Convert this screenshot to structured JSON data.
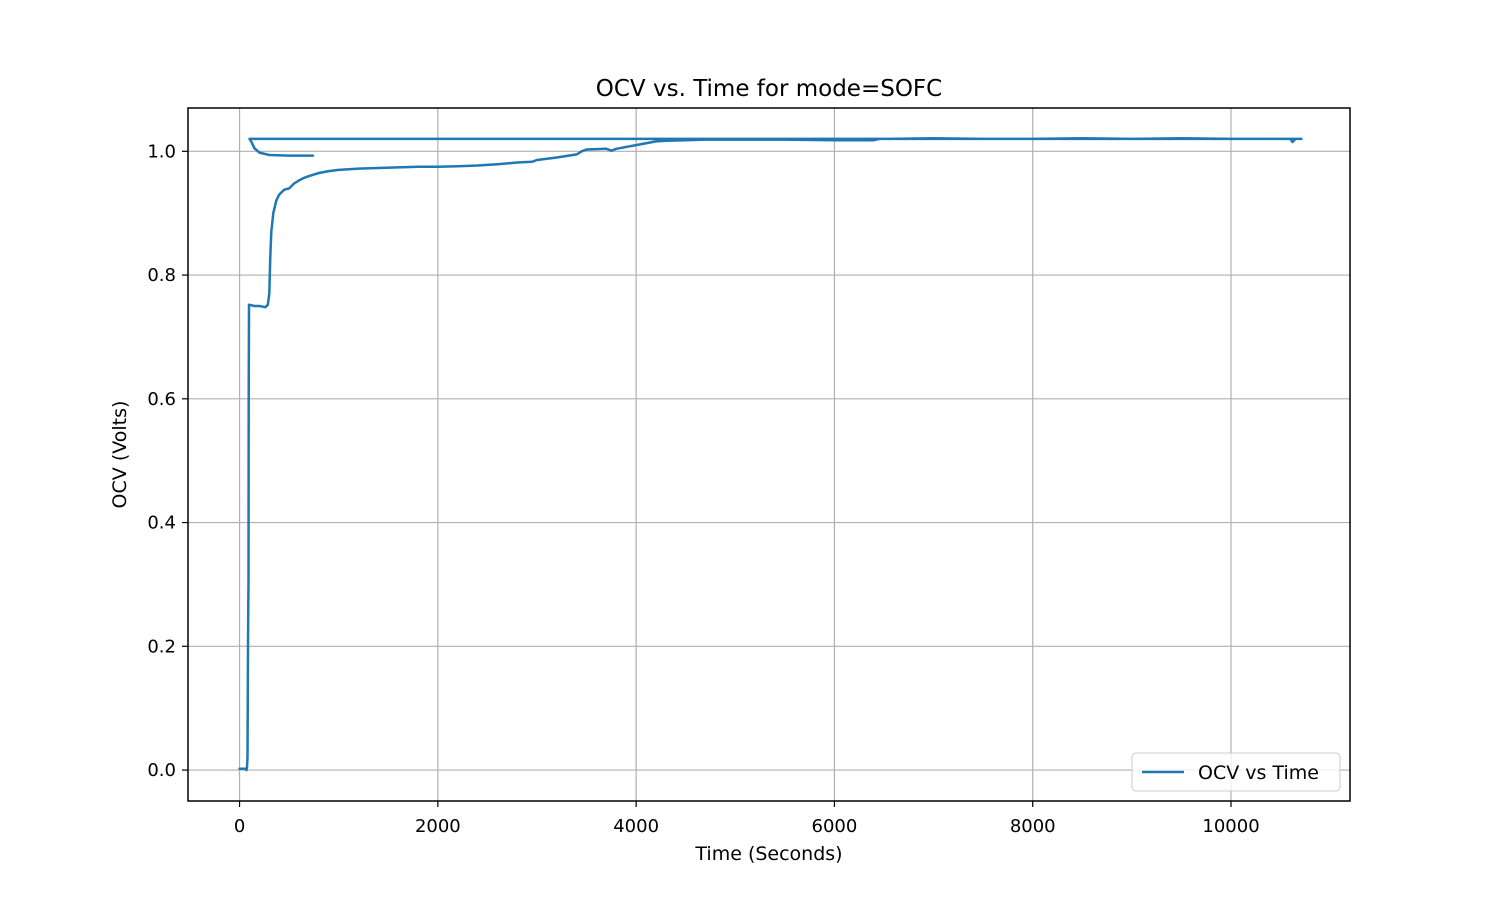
{
  "chart_data": {
    "type": "line",
    "title": "OCV vs. Time for mode=SOFC",
    "xlabel": "Time (Seconds)",
    "ylabel": "OCV (Volts)",
    "xlim": [
      -520,
      11200
    ],
    "ylim": [
      -0.05,
      1.07
    ],
    "xticks": [
      0,
      2000,
      4000,
      6000,
      8000,
      10000
    ],
    "xtick_labels": [
      "0",
      "2000",
      "4000",
      "6000",
      "8000",
      "10000"
    ],
    "yticks": [
      0.0,
      0.2,
      0.4,
      0.6,
      0.8,
      1.0
    ],
    "ytick_labels": [
      "0.0",
      "0.2",
      "0.4",
      "0.6",
      "0.8",
      "1.0"
    ],
    "grid": true,
    "legend_position": "lower-right",
    "colors": {
      "series": "#1f77b4",
      "grid": "#b0b0b0",
      "axes": "#000000"
    },
    "series": [
      {
        "name": "OCV vs Time",
        "x": [
          0,
          60,
          70,
          75,
          80,
          85,
          88,
          90,
          92,
          95,
          100,
          150,
          200,
          260,
          285,
          300,
          310,
          320,
          340,
          370,
          400,
          450,
          500,
          550,
          600,
          650,
          700,
          800,
          900,
          1000,
          1200,
          1400,
          1600,
          1800,
          2000,
          2200,
          2400,
          2600,
          2800,
          2950,
          3000,
          3200,
          3400,
          3450,
          3500,
          3700,
          3750,
          3800,
          4000,
          4200,
          4300,
          4500,
          4700,
          5000,
          5500,
          6000,
          6400,
          6450,
          6500,
          7000,
          7500,
          8000,
          8500,
          9000,
          9500,
          10000,
          10500,
          10600,
          10620,
          10650,
          10700,
          10710,
          10400,
          9000,
          7000,
          5000,
          3000,
          1000,
          500,
          200,
          120,
          100,
          120,
          150,
          200,
          300,
          500,
          740
        ],
        "y": [
          0.002,
          0.002,
          0.0,
          0.005,
          0.02,
          0.2,
          0.27,
          0.3,
          0.6,
          0.752,
          0.752,
          0.75,
          0.75,
          0.748,
          0.752,
          0.77,
          0.83,
          0.87,
          0.9,
          0.92,
          0.93,
          0.938,
          0.94,
          0.948,
          0.953,
          0.957,
          0.96,
          0.965,
          0.968,
          0.97,
          0.972,
          0.973,
          0.974,
          0.975,
          0.975,
          0.976,
          0.977,
          0.979,
          0.982,
          0.983,
          0.986,
          0.99,
          0.995,
          1.0,
          1.003,
          1.004,
          1.001,
          1.004,
          1.01,
          1.016,
          1.017,
          1.018,
          1.019,
          1.019,
          1.019,
          1.018,
          1.018,
          1.02,
          1.02,
          1.021,
          1.02,
          1.02,
          1.021,
          1.02,
          1.021,
          1.02,
          1.02,
          1.02,
          1.015,
          1.02,
          1.02,
          1.02,
          1.02,
          1.02,
          1.02,
          1.02,
          1.02,
          1.02,
          1.02,
          1.02,
          1.02,
          1.02,
          1.015,
          1.005,
          0.998,
          0.994,
          0.993,
          0.993
        ]
      }
    ]
  }
}
